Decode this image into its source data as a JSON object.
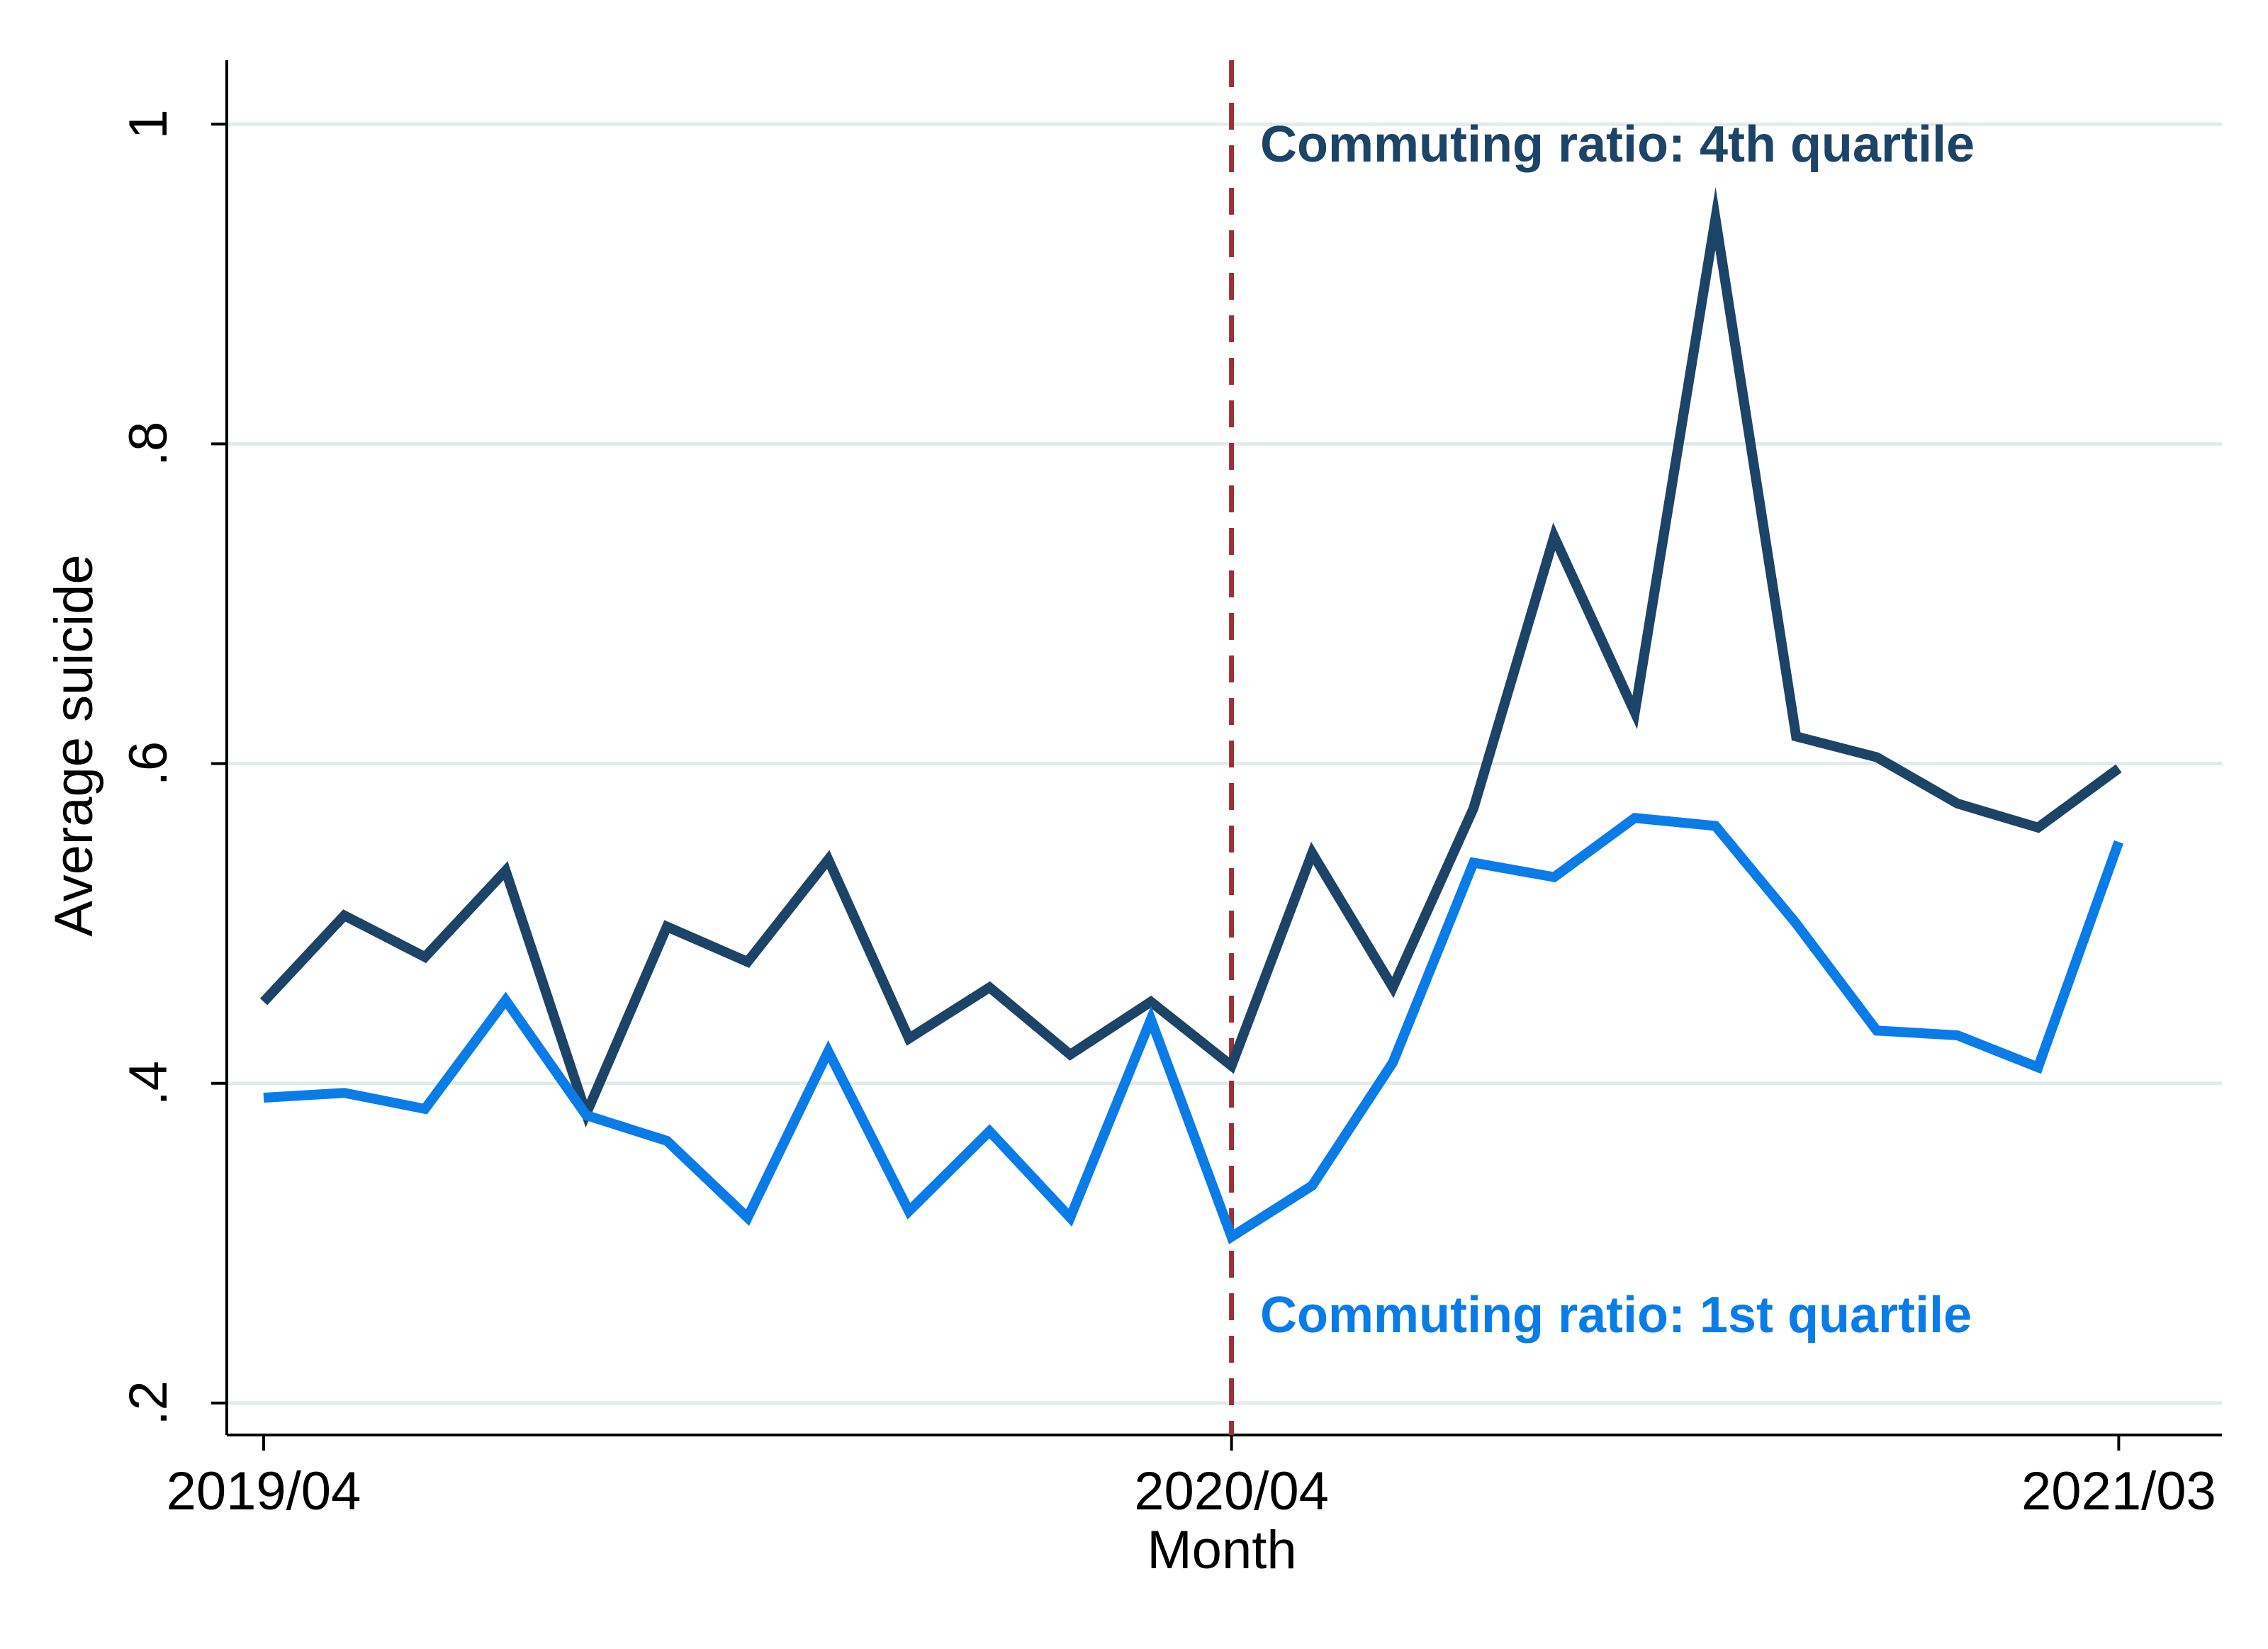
{
  "chart_data": {
    "type": "line",
    "xlabel": "Month",
    "ylabel": "Average suicide",
    "x_tick_labels": [
      "2019/04",
      "2020/04",
      "2021/03"
    ],
    "y_tick_labels": [
      ".2",
      ".4",
      ".6",
      ".8",
      "1"
    ],
    "ylim": [
      0.18,
      1.04
    ],
    "y_ticks": [
      0.2,
      0.4,
      0.6,
      0.8,
      1.0
    ],
    "grid": "horizontal",
    "x": [
      "2019/04",
      "2019/05",
      "2019/06",
      "2019/07",
      "2019/08",
      "2019/09",
      "2019/10",
      "2019/11",
      "2019/12",
      "2020/01",
      "2020/02",
      "2020/03",
      "2020/04",
      "2020/05",
      "2020/06",
      "2020/07",
      "2020/08",
      "2020/09",
      "2020/10",
      "2020/11",
      "2020/12",
      "2021/01",
      "2021/02",
      "2021/03"
    ],
    "x_tick_positions": [
      "2019/04",
      "2020/04",
      "2021/03"
    ],
    "vline": {
      "x": "2020/04",
      "color": "#9b3035",
      "style": "dashed"
    },
    "series": [
      {
        "name": "Commuting ratio: 4th quartile",
        "color": "#1d4366",
        "values": [
          0.451,
          0.505,
          0.479,
          0.533,
          0.381,
          0.498,
          0.476,
          0.54,
          0.428,
          0.46,
          0.418,
          0.451,
          0.411,
          0.544,
          0.46,
          0.572,
          0.742,
          0.632,
          0.941,
          0.617,
          0.604,
          0.575,
          0.56,
          0.597
        ]
      },
      {
        "name": "Commuting ratio: 1st quartile",
        "color": "#0a7ce8",
        "values": [
          0.391,
          0.394,
          0.384,
          0.452,
          0.38,
          0.364,
          0.316,
          0.42,
          0.32,
          0.37,
          0.316,
          0.44,
          0.304,
          0.336,
          0.413,
          0.538,
          0.529,
          0.566,
          0.561,
          0.5,
          0.433,
          0.43,
          0.41,
          0.551
        ]
      }
    ]
  }
}
